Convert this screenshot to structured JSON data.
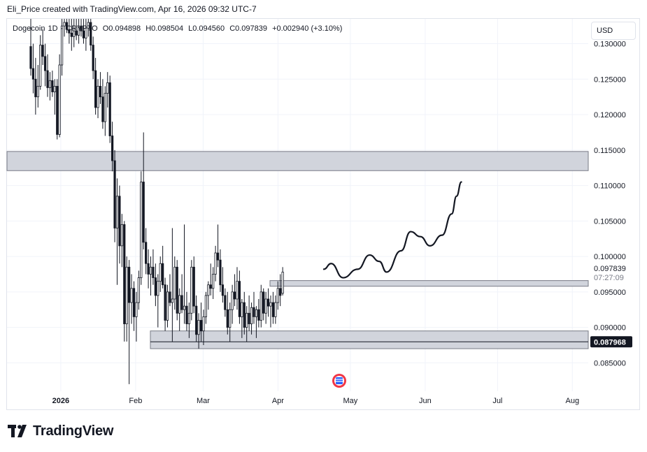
{
  "header": {
    "attribution": "Eli_Price created with TradingView.com, Apr 16, 2026 09:32 UTC-7"
  },
  "legend": {
    "symbol": "Dogecoin",
    "interval": "1D",
    "exchange": "CRYPTO",
    "open": "O0.094898",
    "high": "H0.098504",
    "low": "L0.094560",
    "close": "C0.097839",
    "change": "+0.002940 (+3.10%)"
  },
  "currency_button": "USD",
  "price_axis": {
    "ticks": [
      "0.130000",
      "0.125000",
      "0.120000",
      "0.115000",
      "0.110000",
      "0.105000",
      "0.100000",
      "0.095000",
      "0.090000",
      "0.085000"
    ],
    "last_price": "0.097839",
    "countdown": "07:27:09",
    "level_label": "0.087968"
  },
  "time_axis": {
    "labels": [
      "2026",
      "Feb",
      "Mar",
      "Apr",
      "May",
      "Jun",
      "Jul",
      "Aug"
    ]
  },
  "footer": {
    "brand": "TradingView"
  },
  "colors": {
    "candle": "#131722",
    "zone_fill": "#d1d4dc",
    "zone_border": "#787b86",
    "price_label_bg": "#131722",
    "grid": "#f0f3fa"
  },
  "chart_data": {
    "type": "candlestick",
    "symbol": "Dogecoin",
    "interval": "1D",
    "ylim": [
      0.081,
      0.1335
    ],
    "yticks": [
      0.085,
      0.09,
      0.095,
      0.1,
      0.105,
      0.11,
      0.115,
      0.12,
      0.125,
      0.13
    ],
    "xlabels": [
      "2026",
      "Feb",
      "Mar",
      "Apr",
      "May",
      "Jun",
      "Jul",
      "Aug"
    ],
    "zones": [
      {
        "from": 0.1121,
        "to": 0.1148
      },
      {
        "from": 0.0958,
        "to": 0.0966
      },
      {
        "from": 0.087,
        "to": 0.0895
      }
    ],
    "horizontal_line": 0.087968,
    "projection_path": [
      [
        "2026-04-20",
        0.0982
      ],
      [
        "2026-04-23",
        0.099
      ],
      [
        "2026-04-28",
        0.097
      ],
      [
        "2026-05-04",
        0.0982
      ],
      [
        "2026-05-09",
        0.1002
      ],
      [
        "2026-05-13",
        0.0993
      ],
      [
        "2026-05-16",
        0.0978
      ],
      [
        "2026-05-22",
        0.1008
      ],
      [
        "2026-05-26",
        0.1035
      ],
      [
        "2026-05-30",
        0.1028
      ],
      [
        "2026-06-03",
        0.1015
      ],
      [
        "2026-06-08",
        0.103
      ],
      [
        "2026-06-12",
        0.106
      ],
      [
        "2026-06-14",
        0.1085
      ],
      [
        "2026-06-16",
        0.1105
      ]
    ],
    "candles": [
      {
        "o": 0.1296,
        "h": 0.1335,
        "l": 0.1255,
        "c": 0.1265
      },
      {
        "o": 0.1265,
        "h": 0.13,
        "l": 0.123,
        "c": 0.125
      },
      {
        "o": 0.125,
        "h": 0.128,
        "l": 0.12,
        "c": 0.1225
      },
      {
        "o": 0.1225,
        "h": 0.127,
        "l": 0.121,
        "c": 0.124
      },
      {
        "o": 0.124,
        "h": 0.1312,
        "l": 0.1235,
        "c": 0.1298
      },
      {
        "o": 0.1298,
        "h": 0.132,
        "l": 0.127,
        "c": 0.1282
      },
      {
        "o": 0.1282,
        "h": 0.13,
        "l": 0.124,
        "c": 0.1262
      },
      {
        "o": 0.1262,
        "h": 0.1285,
        "l": 0.1225,
        "c": 0.1238
      },
      {
        "o": 0.1238,
        "h": 0.126,
        "l": 0.122,
        "c": 0.1248
      },
      {
        "o": 0.1248,
        "h": 0.1262,
        "l": 0.1225,
        "c": 0.1232
      },
      {
        "o": 0.1232,
        "h": 0.125,
        "l": 0.12,
        "c": 0.124
      },
      {
        "o": 0.124,
        "h": 0.125,
        "l": 0.1165,
        "c": 0.1172
      },
      {
        "o": 0.1172,
        "h": 0.1285,
        "l": 0.1168,
        "c": 0.127
      },
      {
        "o": 0.127,
        "h": 0.1335,
        "l": 0.1255,
        "c": 0.1325
      },
      {
        "o": 0.1325,
        "h": 0.1335,
        "l": 0.131,
        "c": 0.133
      },
      {
        "o": 0.133,
        "h": 0.1335,
        "l": 0.1315,
        "c": 0.132
      },
      {
        "o": 0.132,
        "h": 0.1335,
        "l": 0.13,
        "c": 0.1315
      },
      {
        "o": 0.1315,
        "h": 0.1335,
        "l": 0.129,
        "c": 0.131
      },
      {
        "o": 0.131,
        "h": 0.1335,
        "l": 0.1295,
        "c": 0.1318
      },
      {
        "o": 0.1318,
        "h": 0.1335,
        "l": 0.1305,
        "c": 0.1312
      },
      {
        "o": 0.1312,
        "h": 0.1335,
        "l": 0.13,
        "c": 0.1325
      },
      {
        "o": 0.1325,
        "h": 0.1335,
        "l": 0.131,
        "c": 0.1318
      },
      {
        "o": 0.1318,
        "h": 0.1335,
        "l": 0.13,
        "c": 0.1308
      },
      {
        "o": 0.1308,
        "h": 0.1335,
        "l": 0.129,
        "c": 0.1322
      },
      {
        "o": 0.1322,
        "h": 0.1335,
        "l": 0.131,
        "c": 0.133
      },
      {
        "o": 0.133,
        "h": 0.1335,
        "l": 0.129,
        "c": 0.1298
      },
      {
        "o": 0.1298,
        "h": 0.131,
        "l": 0.125,
        "c": 0.1262
      },
      {
        "o": 0.1262,
        "h": 0.128,
        "l": 0.12,
        "c": 0.121
      },
      {
        "o": 0.121,
        "h": 0.125,
        "l": 0.1195,
        "c": 0.124
      },
      {
        "o": 0.124,
        "h": 0.126,
        "l": 0.1215,
        "c": 0.1225
      },
      {
        "o": 0.1225,
        "h": 0.125,
        "l": 0.118,
        "c": 0.119
      },
      {
        "o": 0.119,
        "h": 0.124,
        "l": 0.117,
        "c": 0.123
      },
      {
        "o": 0.123,
        "h": 0.126,
        "l": 0.121,
        "c": 0.1245
      },
      {
        "o": 0.1245,
        "h": 0.1255,
        "l": 0.116,
        "c": 0.117
      },
      {
        "o": 0.117,
        "h": 0.119,
        "l": 0.112,
        "c": 0.1135
      },
      {
        "o": 0.1135,
        "h": 0.115,
        "l": 0.102,
        "c": 0.104
      },
      {
        "o": 0.104,
        "h": 0.111,
        "l": 0.096,
        "c": 0.1085
      },
      {
        "o": 0.1085,
        "h": 0.11,
        "l": 0.099,
        "c": 0.1015
      },
      {
        "o": 0.1015,
        "h": 0.106,
        "l": 0.0985,
        "c": 0.1045
      },
      {
        "o": 0.1045,
        "h": 0.105,
        "l": 0.088,
        "c": 0.0905
      },
      {
        "o": 0.0905,
        "h": 0.1,
        "l": 0.088,
        "c": 0.0985
      },
      {
        "o": 0.0985,
        "h": 0.0995,
        "l": 0.082,
        "c": 0.0935
      },
      {
        "o": 0.0935,
        "h": 0.0975,
        "l": 0.0905,
        "c": 0.0955
      },
      {
        "o": 0.0955,
        "h": 0.0965,
        "l": 0.0895,
        "c": 0.0915
      },
      {
        "o": 0.0915,
        "h": 0.095,
        "l": 0.088,
        "c": 0.0935
      },
      {
        "o": 0.0935,
        "h": 0.098,
        "l": 0.0925,
        "c": 0.097
      },
      {
        "o": 0.097,
        "h": 0.112,
        "l": 0.096,
        "c": 0.1105
      },
      {
        "o": 0.1105,
        "h": 0.1175,
        "l": 0.101,
        "c": 0.102
      },
      {
        "o": 0.102,
        "h": 0.104,
        "l": 0.0975,
        "c": 0.099
      },
      {
        "o": 0.099,
        "h": 0.101,
        "l": 0.0955,
        "c": 0.0975
      },
      {
        "o": 0.0975,
        "h": 0.1,
        "l": 0.0945,
        "c": 0.0985
      },
      {
        "o": 0.0985,
        "h": 0.101,
        "l": 0.096,
        "c": 0.097
      },
      {
        "o": 0.097,
        "h": 0.099,
        "l": 0.093,
        "c": 0.0945
      },
      {
        "o": 0.0945,
        "h": 0.0975,
        "l": 0.09,
        "c": 0.0965
      },
      {
        "o": 0.0965,
        "h": 0.1,
        "l": 0.095,
        "c": 0.099
      },
      {
        "o": 0.099,
        "h": 0.1015,
        "l": 0.0955,
        "c": 0.096
      },
      {
        "o": 0.096,
        "h": 0.097,
        "l": 0.0895,
        "c": 0.091
      },
      {
        "o": 0.091,
        "h": 0.096,
        "l": 0.09,
        "c": 0.095
      },
      {
        "o": 0.095,
        "h": 0.0975,
        "l": 0.093,
        "c": 0.0935
      },
      {
        "o": 0.0935,
        "h": 0.104,
        "l": 0.088,
        "c": 0.094
      },
      {
        "o": 0.094,
        "h": 0.1,
        "l": 0.0925,
        "c": 0.0985
      },
      {
        "o": 0.0985,
        "h": 0.0995,
        "l": 0.091,
        "c": 0.092
      },
      {
        "o": 0.092,
        "h": 0.0955,
        "l": 0.0895,
        "c": 0.0945
      },
      {
        "o": 0.0945,
        "h": 0.0975,
        "l": 0.092,
        "c": 0.0925
      },
      {
        "o": 0.0925,
        "h": 0.1045,
        "l": 0.0905,
        "c": 0.093
      },
      {
        "o": 0.093,
        "h": 0.095,
        "l": 0.0895,
        "c": 0.0905
      },
      {
        "o": 0.0905,
        "h": 0.0935,
        "l": 0.0885,
        "c": 0.092
      },
      {
        "o": 0.092,
        "h": 0.0995,
        "l": 0.091,
        "c": 0.0985
      },
      {
        "o": 0.0985,
        "h": 0.1,
        "l": 0.092,
        "c": 0.093
      },
      {
        "o": 0.093,
        "h": 0.0945,
        "l": 0.088,
        "c": 0.089
      },
      {
        "o": 0.089,
        "h": 0.092,
        "l": 0.087,
        "c": 0.091
      },
      {
        "o": 0.091,
        "h": 0.0935,
        "l": 0.088,
        "c": 0.0895
      },
      {
        "o": 0.0895,
        "h": 0.0925,
        "l": 0.0875,
        "c": 0.0915
      },
      {
        "o": 0.0915,
        "h": 0.095,
        "l": 0.0905,
        "c": 0.0945
      },
      {
        "o": 0.0945,
        "h": 0.0965,
        "l": 0.0925,
        "c": 0.096
      },
      {
        "o": 0.096,
        "h": 0.099,
        "l": 0.0945,
        "c": 0.0955
      },
      {
        "o": 0.0955,
        "h": 0.0985,
        "l": 0.094,
        "c": 0.0975
      },
      {
        "o": 0.0975,
        "h": 0.1015,
        "l": 0.0965,
        "c": 0.1005
      },
      {
        "o": 0.1005,
        "h": 0.1045,
        "l": 0.0985,
        "c": 0.0995
      },
      {
        "o": 0.0995,
        "h": 0.101,
        "l": 0.095,
        "c": 0.096
      },
      {
        "o": 0.096,
        "h": 0.0985,
        "l": 0.0935,
        "c": 0.0945
      },
      {
        "o": 0.0945,
        "h": 0.0955,
        "l": 0.0915,
        "c": 0.0925
      },
      {
        "o": 0.0925,
        "h": 0.095,
        "l": 0.089,
        "c": 0.09
      },
      {
        "o": 0.09,
        "h": 0.0935,
        "l": 0.088,
        "c": 0.0925
      },
      {
        "o": 0.0925,
        "h": 0.096,
        "l": 0.0905,
        "c": 0.095
      },
      {
        "o": 0.095,
        "h": 0.0975,
        "l": 0.093,
        "c": 0.094
      },
      {
        "o": 0.094,
        "h": 0.0985,
        "l": 0.0925,
        "c": 0.0965
      },
      {
        "o": 0.0965,
        "h": 0.098,
        "l": 0.0905,
        "c": 0.0915
      },
      {
        "o": 0.0915,
        "h": 0.094,
        "l": 0.0885,
        "c": 0.0935
      },
      {
        "o": 0.0935,
        "h": 0.095,
        "l": 0.089,
        "c": 0.09
      },
      {
        "o": 0.09,
        "h": 0.093,
        "l": 0.088,
        "c": 0.092
      },
      {
        "o": 0.092,
        "h": 0.0945,
        "l": 0.0895,
        "c": 0.0905
      },
      {
        "o": 0.0905,
        "h": 0.0935,
        "l": 0.089,
        "c": 0.0928
      },
      {
        "o": 0.0928,
        "h": 0.095,
        "l": 0.0905,
        "c": 0.0915
      },
      {
        "o": 0.0915,
        "h": 0.093,
        "l": 0.0885,
        "c": 0.0925
      },
      {
        "o": 0.0925,
        "h": 0.094,
        "l": 0.09,
        "c": 0.091
      },
      {
        "o": 0.091,
        "h": 0.096,
        "l": 0.09,
        "c": 0.095
      },
      {
        "o": 0.095,
        "h": 0.0955,
        "l": 0.091,
        "c": 0.092
      },
      {
        "o": 0.092,
        "h": 0.095,
        "l": 0.0905,
        "c": 0.094
      },
      {
        "o": 0.094,
        "h": 0.0955,
        "l": 0.0915,
        "c": 0.093
      },
      {
        "o": 0.093,
        "h": 0.0945,
        "l": 0.09,
        "c": 0.0935
      },
      {
        "o": 0.0935,
        "h": 0.095,
        "l": 0.0905,
        "c": 0.0915
      },
      {
        "o": 0.0915,
        "h": 0.0945,
        "l": 0.0905,
        "c": 0.0935
      },
      {
        "o": 0.0935,
        "h": 0.0965,
        "l": 0.0925,
        "c": 0.0955
      },
      {
        "o": 0.0955,
        "h": 0.0975,
        "l": 0.093,
        "c": 0.0945
      },
      {
        "o": 0.0948,
        "h": 0.0985,
        "l": 0.0945,
        "c": 0.0978
      }
    ]
  }
}
